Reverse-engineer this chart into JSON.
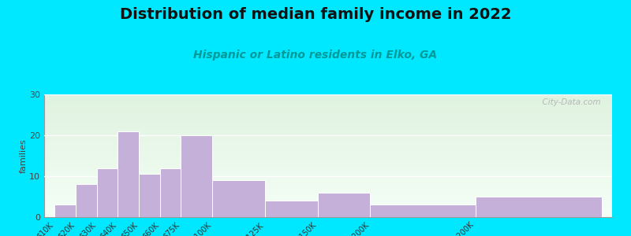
{
  "title": "Distribution of median family income in 2022",
  "subtitle": "Hispanic or Latino residents in Elko, GA",
  "ylabel": "families",
  "categories": [
    "$10K",
    "$20K",
    "$30K",
    "$40K",
    "$50K",
    "$60K",
    "$75K",
    "$100K",
    "$125K",
    "$150K",
    "$200K",
    "> $200K"
  ],
  "values": [
    3,
    8,
    12,
    21,
    10.5,
    12,
    20,
    9,
    4,
    6,
    3,
    5
  ],
  "bar_color": "#c4b0d8",
  "bar_edge_color": "#ffffff",
  "ylim": [
    0,
    30
  ],
  "yticks": [
    0,
    10,
    20,
    30
  ],
  "background_outer": "#00e8ff",
  "plot_bg_top": "#dff2e0",
  "plot_bg_bottom": "#f8fff8",
  "title_fontsize": 14,
  "subtitle_fontsize": 10,
  "subtitle_color": "#009999",
  "ylabel_fontsize": 8,
  "watermark_text": "  City-Data.com"
}
